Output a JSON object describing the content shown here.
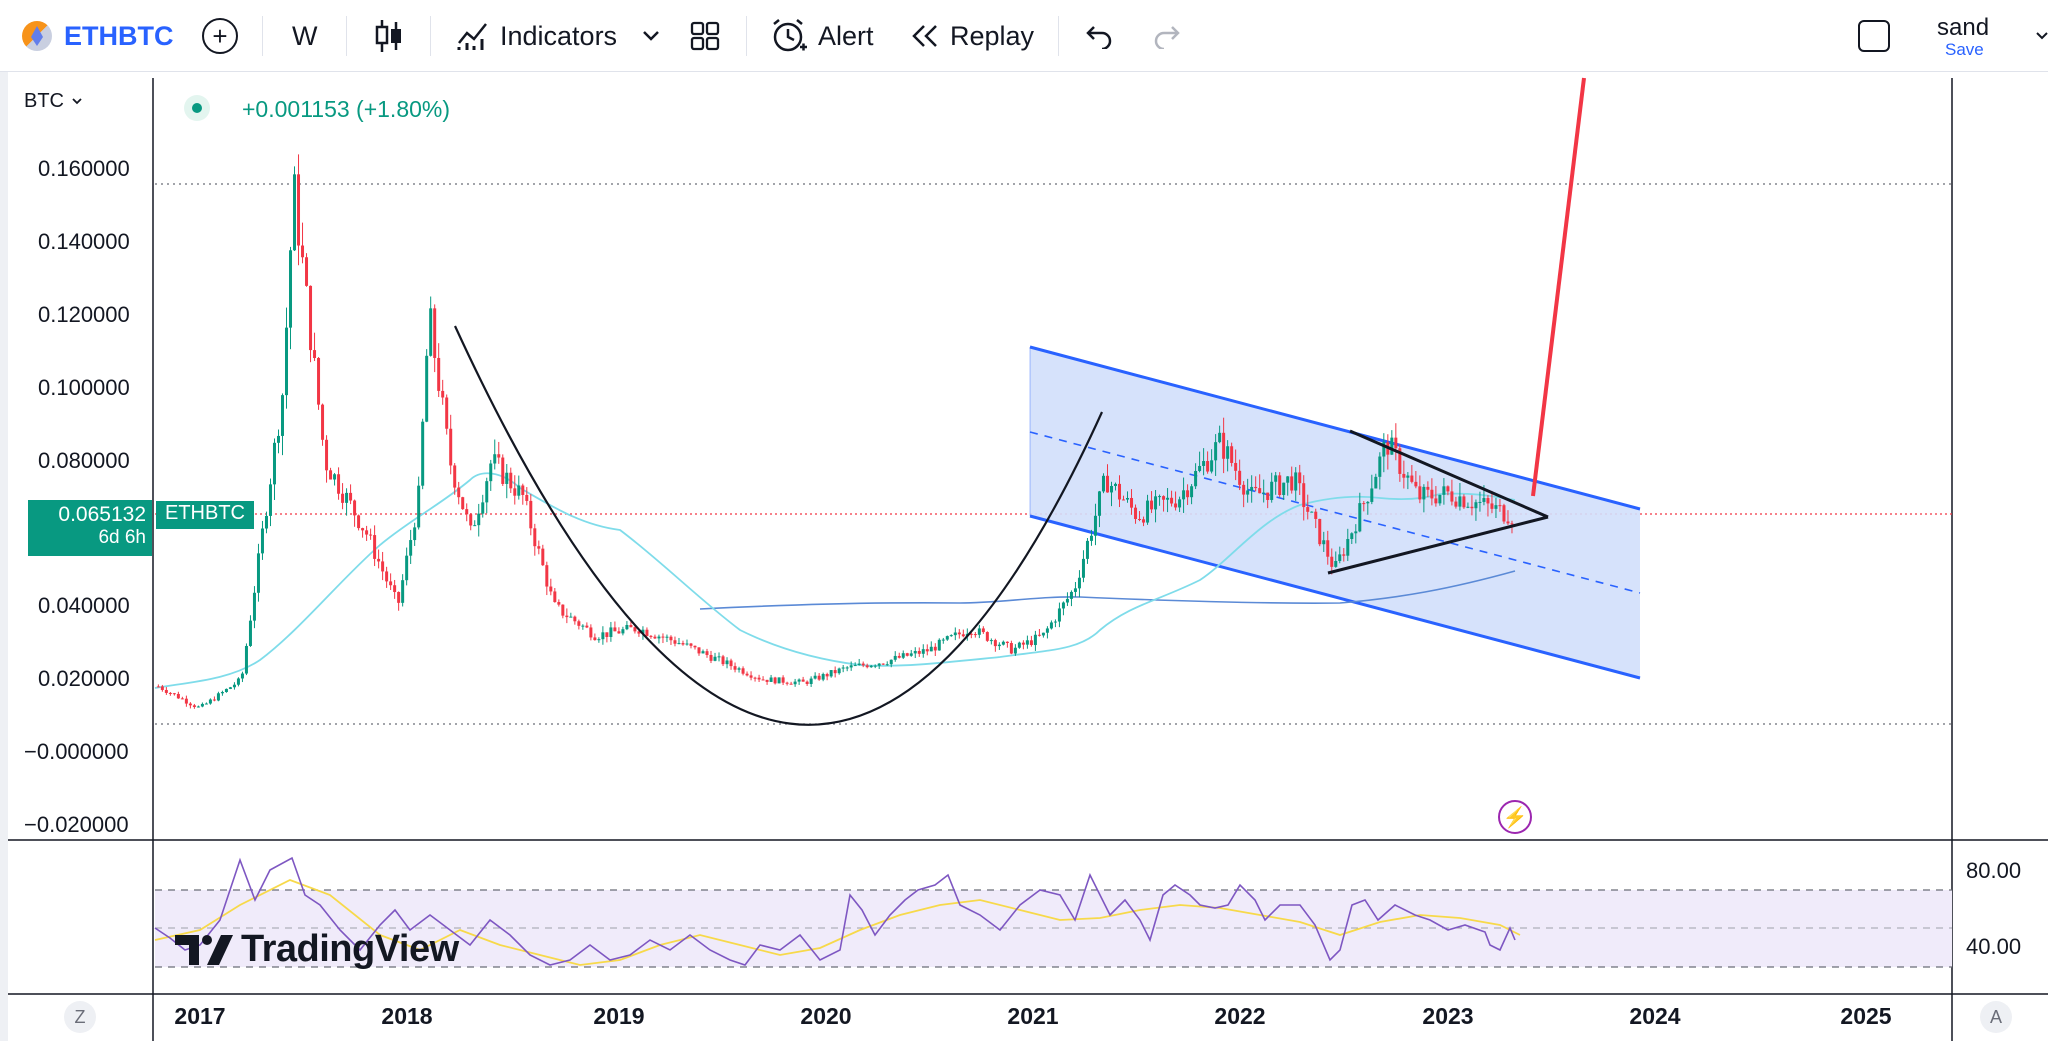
{
  "toolbar": {
    "symbol": "ETHBTC",
    "interval": "W",
    "indicators_label": "Indicators",
    "alert_label": "Alert",
    "replay_label": "Replay",
    "user_name": "sand",
    "save_label": "Save",
    "icons": [
      "ethbtc-coin-icon",
      "add-symbol-icon",
      "candles-icon",
      "indicators-icon",
      "chevron-down-icon",
      "layouts-icon",
      "alert-icon",
      "replay-icon",
      "undo-icon",
      "redo-icon",
      "layout-square-icon"
    ]
  },
  "legend": {
    "currency": "BTC",
    "change": "+0.001153 (+1.80%)"
  },
  "current_price": {
    "price": "0.065132",
    "countdown": "6d 6h",
    "symbol": "ETHBTC",
    "color": "#089981"
  },
  "colors": {
    "up": "#089981",
    "down": "#f23645",
    "ma_fast": "#7fdcea",
    "ma_slow": "#5b8ad6",
    "channel_line": "#2962ff",
    "channel_fill": "#d2dffb",
    "projection": "#f23645",
    "rsi": "#7e57c2",
    "rsi_ma": "#f7d94a"
  },
  "footer": {
    "logo": "TradingView",
    "left_button": "Z",
    "right_button": "A"
  },
  "chart_data": {
    "type": "candlestick",
    "timeframe": "W",
    "y_axis_labels": [
      "0.160000",
      "0.140000",
      "0.120000",
      "0.100000",
      "0.080000",
      "0.040000",
      "0.020000",
      "−0.000000",
      "−0.020000"
    ],
    "ylim": [
      -0.022,
      0.186
    ],
    "x_axis_labels": [
      "2017",
      "2018",
      "2019",
      "2020",
      "2021",
      "2022",
      "2023",
      "2024",
      "2025"
    ],
    "xlim": [
      2016.8,
      2025.5
    ],
    "price_series_approx": [
      [
        2016.8,
        0.018
      ],
      [
        2017.0,
        0.012
      ],
      [
        2017.2,
        0.02
      ],
      [
        2017.4,
        0.1
      ],
      [
        2017.45,
        0.155
      ],
      [
        2017.6,
        0.08
      ],
      [
        2017.8,
        0.06
      ],
      [
        2017.95,
        0.04
      ],
      [
        2018.05,
        0.07
      ],
      [
        2018.1,
        0.12
      ],
      [
        2018.2,
        0.08
      ],
      [
        2018.3,
        0.06
      ],
      [
        2018.4,
        0.08
      ],
      [
        2018.55,
        0.07
      ],
      [
        2018.7,
        0.04
      ],
      [
        2018.9,
        0.032
      ],
      [
        2019.1,
        0.034
      ],
      [
        2019.3,
        0.03
      ],
      [
        2019.5,
        0.025
      ],
      [
        2019.7,
        0.02
      ],
      [
        2019.9,
        0.019
      ],
      [
        2020.1,
        0.023
      ],
      [
        2020.3,
        0.025
      ],
      [
        2020.5,
        0.028
      ],
      [
        2020.7,
        0.034
      ],
      [
        2020.9,
        0.028
      ],
      [
        2021.05,
        0.032
      ],
      [
        2021.2,
        0.045
      ],
      [
        2021.35,
        0.075
      ],
      [
        2021.5,
        0.065
      ],
      [
        2021.7,
        0.07
      ],
      [
        2021.9,
        0.085
      ],
      [
        2022.05,
        0.07
      ],
      [
        2022.25,
        0.075
      ],
      [
        2022.45,
        0.05
      ],
      [
        2022.6,
        0.07
      ],
      [
        2022.7,
        0.085
      ],
      [
        2022.85,
        0.07
      ],
      [
        2023.0,
        0.071
      ],
      [
        2023.15,
        0.068
      ],
      [
        2023.3,
        0.065
      ]
    ],
    "annotations": {
      "rounding_bottom_arc": {
        "from": [
          2018.2,
          0.117
        ],
        "bottom": [
          2019.95,
          0.0135
        ],
        "to": [
          2021.35,
          0.094
        ]
      },
      "descending_channel": {
        "upper": [
          [
            2020.98,
            0.112
          ],
          [
            2023.9,
            0.0655
          ]
        ],
        "lower": [
          [
            2020.98,
            0.0635
          ],
          [
            2023.9,
            0.0205
          ]
        ],
        "mid_dashed": [
          [
            2020.98,
            0.088
          ],
          [
            2023.9,
            0.043
          ]
        ]
      },
      "triangle": {
        "apex": [
          2023.45,
          0.064
        ],
        "upper_start": [
          2022.55,
          0.087
        ],
        "lower_start": [
          2022.45,
          0.049
        ]
      },
      "breakout_projection": {
        "from": [
          2023.4,
          0.069
        ],
        "to": [
          2023.65,
          0.18
        ]
      },
      "ath_level": 0.1575,
      "low_level": 0.007,
      "current_price_level": 0.065132
    },
    "rsi": {
      "y_axis_labels": [
        "80.00",
        "40.00"
      ],
      "upper_band": 70,
      "lower_band": 30,
      "mid": 50
    }
  }
}
